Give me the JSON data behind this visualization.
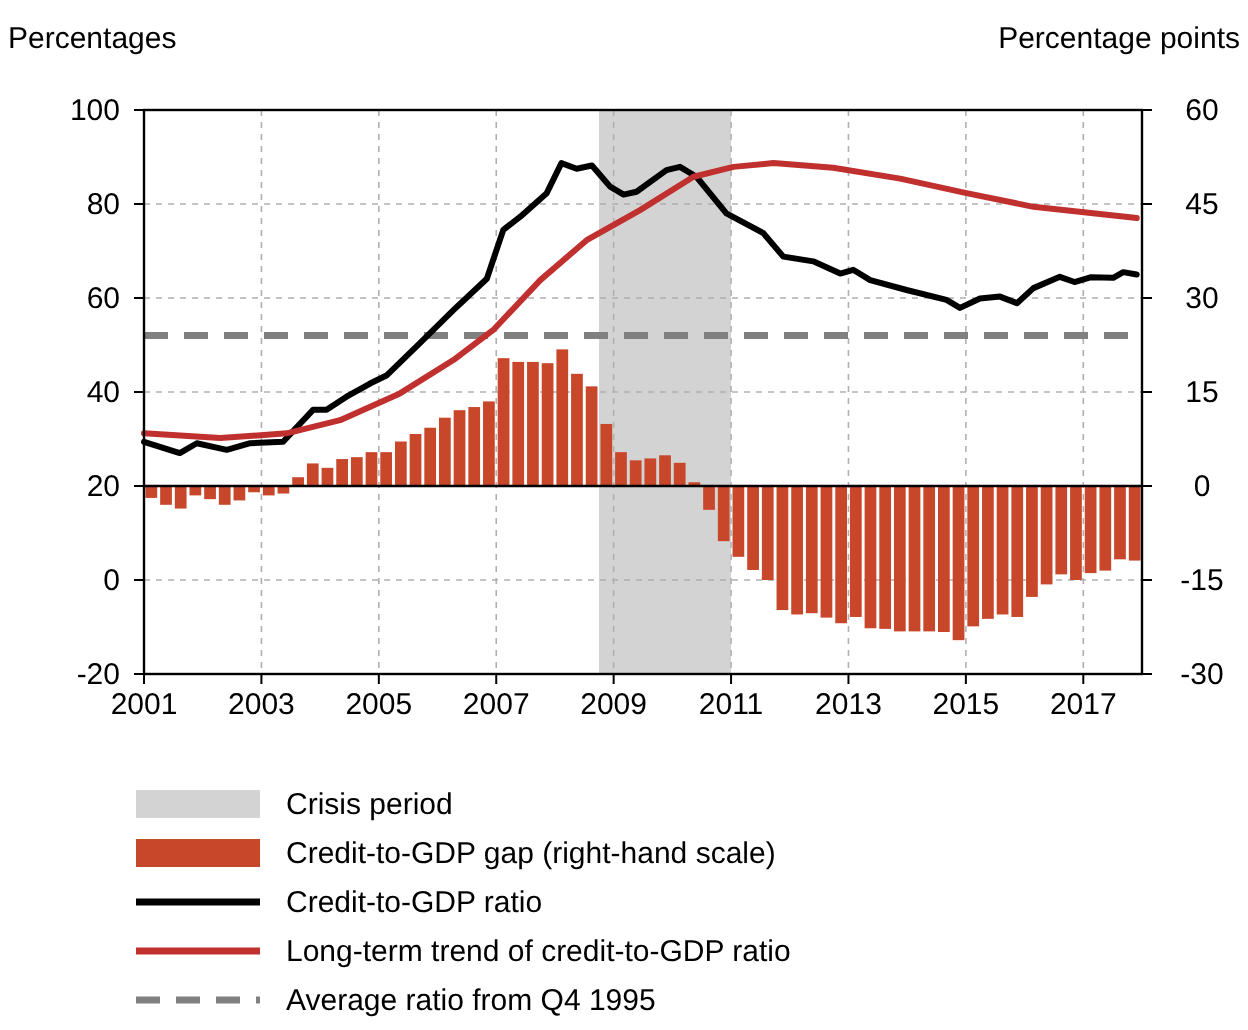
{
  "chart_data": {
    "type": "line",
    "ylabel": "Percentages",
    "y2label": "Percentage points",
    "xlim": [
      2001,
      2018
    ],
    "xticks": [
      2001,
      2003,
      2005,
      2007,
      2009,
      2011,
      2013,
      2015,
      2017
    ],
    "ylim": [
      -20,
      100
    ],
    "yticks": [
      -20,
      0,
      20,
      40,
      60,
      80,
      100
    ],
    "y2lim": [
      -30,
      60
    ],
    "y2ticks": [
      -30,
      -15,
      0,
      15,
      30,
      45,
      60
    ],
    "grid": true,
    "legend": "bottom",
    "bands": [
      {
        "axis": "x",
        "from": 2008.75,
        "to": 2011,
        "label": "Crisis period",
        "color": "#d3d3d3"
      }
    ],
    "ref_lines": [
      {
        "axis": "y",
        "value": 52,
        "label": "Average ratio from Q4 1995",
        "color": "#808080",
        "line_style": "dashed"
      }
    ],
    "series": [
      {
        "name": "Credit-to-GDP gap (right-hand scale)",
        "type": "bar",
        "axis": "y2",
        "color": "#c8472a",
        "x": [
          2001.125,
          2001.375,
          2001.625,
          2001.875,
          2002.125,
          2002.375,
          2002.625,
          2002.875,
          2003.125,
          2003.375,
          2003.625,
          2003.875,
          2004.125,
          2004.375,
          2004.625,
          2004.875,
          2005.125,
          2005.375,
          2005.625,
          2005.875,
          2006.125,
          2006.375,
          2006.625,
          2006.875,
          2007.125,
          2007.375,
          2007.625,
          2007.875,
          2008.125,
          2008.375,
          2008.625,
          2008.875,
          2009.125,
          2009.375,
          2009.625,
          2009.875,
          2010.125,
          2010.375,
          2010.625,
          2010.875,
          2011.125,
          2011.375,
          2011.625,
          2011.875,
          2012.125,
          2012.375,
          2012.625,
          2012.875,
          2013.125,
          2013.375,
          2013.625,
          2013.875,
          2014.125,
          2014.375,
          2014.625,
          2014.875,
          2015.125,
          2015.375,
          2015.625,
          2015.875,
          2016.125,
          2016.375,
          2016.625,
          2016.875,
          2017.125,
          2017.375,
          2017.625,
          2017.875
        ],
        "values": [
          -1.9,
          -3.0,
          -3.6,
          -1.5,
          -2.1,
          -3.0,
          -2.3,
          -1.0,
          -1.5,
          -1.2,
          1.4,
          3.6,
          2.9,
          4.3,
          4.6,
          5.4,
          5.4,
          7.1,
          8.3,
          9.3,
          10.9,
          12.1,
          12.6,
          13.5,
          20.4,
          19.8,
          19.8,
          19.6,
          21.8,
          17.9,
          15.9,
          9.9,
          5.4,
          4.1,
          4.4,
          4.9,
          3.7,
          0.6,
          -3.8,
          -8.8,
          -11.3,
          -13.4,
          -15.0,
          -19.8,
          -20.5,
          -20.3,
          -21.0,
          -21.9,
          -20.9,
          -22.7,
          -22.8,
          -23.2,
          -23.2,
          -23.2,
          -23.3,
          -24.6,
          -22.4,
          -21.2,
          -20.5,
          -20.9,
          -17.7,
          -15.7,
          -14.1,
          -15.0,
          -13.9,
          -13.5,
          -11.7,
          -11.9
        ]
      },
      {
        "name": "Credit-to-GDP ratio",
        "color": "#000000",
        "x": [
          2001.0,
          2001.61,
          2001.9,
          2002.41,
          2002.81,
          2003.37,
          2003.88,
          2004.11,
          2004.45,
          2004.85,
          2005.13,
          2005.7,
          2006.27,
          2006.84,
          2007.12,
          2007.41,
          2007.86,
          2008.11,
          2008.37,
          2008.63,
          2008.94,
          2009.17,
          2009.39,
          2009.9,
          2010.13,
          2010.41,
          2010.92,
          2011.55,
          2011.89,
          2012.4,
          2012.86,
          2013.08,
          2013.37,
          2013.99,
          2014.67,
          2014.9,
          2015.24,
          2015.58,
          2015.87,
          2016.15,
          2016.6,
          2016.85,
          2017.12,
          2017.51,
          2017.68,
          2017.91
        ],
        "values": [
          29.4,
          27,
          29.1,
          27.7,
          29.1,
          29.4,
          36.2,
          36.2,
          39,
          41.8,
          43.5,
          50.4,
          57.4,
          64.1,
          74.5,
          77.3,
          82.3,
          88.7,
          87.5,
          88.2,
          83.7,
          82,
          82.6,
          87.2,
          87.9,
          85.8,
          78,
          73.8,
          68.8,
          67.8,
          65.2,
          66,
          63.8,
          61.7,
          59.6,
          57.9,
          59.9,
          60.3,
          58.9,
          62.1,
          64.5,
          63.4,
          64.4,
          64.3,
          65.5,
          65
        ]
      },
      {
        "name": "Long-term trend of credit-to-GDP ratio",
        "color": "#c0302e",
        "x": [
          2001.0,
          2002.3,
          2003.43,
          2004.34,
          2005.36,
          2006.27,
          2006.95,
          2007.75,
          2008.54,
          2009.45,
          2010.36,
          2011.04,
          2011.72,
          2012.74,
          2013.88,
          2015.01,
          2016.15,
          2017.91
        ],
        "values": [
          31.2,
          30.2,
          31.2,
          34,
          39.7,
          46.8,
          53.2,
          63.8,
          72.3,
          78.7,
          85.8,
          87.9,
          88.7,
          87.7,
          85.4,
          82.3,
          79.4,
          77
        ]
      }
    ]
  }
}
